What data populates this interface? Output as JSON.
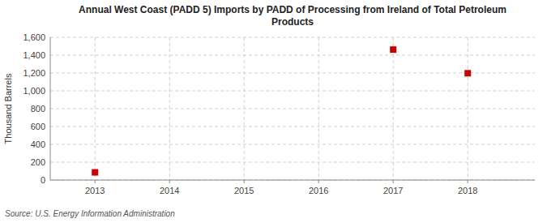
{
  "chart_data": {
    "type": "scatter",
    "title": "Annual West Coast (PADD 5) Imports by PADD of Processing from Ireland of Total Petroleum\nProducts",
    "y_label": "Thousand Barrels",
    "annotations": [
      "Source: U.S. Energy Information Administration"
    ],
    "x": [
      2013,
      2017,
      2018
    ],
    "values": [
      86,
      1462,
      1197
    ],
    "color": "#cc0000",
    "marker": "square",
    "xlim": [
      2012.4,
      2018.9
    ],
    "ylim": [
      0,
      1600
    ],
    "xticks": [
      2013,
      2014,
      2015,
      2016,
      2017,
      2018
    ],
    "yticks": [
      0,
      200,
      400,
      600,
      800,
      {
        "value": 1000,
        "label": "1,000"
      },
      {
        "value": 1200,
        "label": "1,200"
      },
      {
        "value": 1400,
        "label": "1,400"
      },
      {
        "value": 1600,
        "label": "1,600"
      }
    ],
    "grid": true
  }
}
